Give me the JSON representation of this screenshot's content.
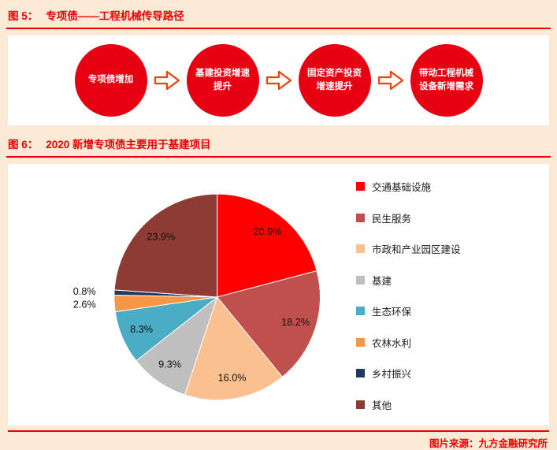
{
  "page": {
    "background_color": "#fcead7",
    "accent_red": "#e60000"
  },
  "figure5": {
    "label": "图 5：",
    "title": "专项债——工程机械传导路径",
    "circle_color": "#e60012",
    "arrow_color": "#e8420d",
    "steps": [
      "专项债增加",
      "基建投资增速提升",
      "固定资产投资增速提升",
      "带动工程机械设备新增需求"
    ]
  },
  "figure6": {
    "label": "图 6：",
    "title": "2020 新增专项债主要用于基建项目"
  },
  "chart_data": {
    "type": "pie",
    "title": "2020 新增专项债主要用于基建项目",
    "categories": [
      "交通基础设施",
      "民生服务",
      "市政和产业园区建设",
      "基建",
      "生态环保",
      "农林水利",
      "乡村振兴",
      "其他"
    ],
    "values": [
      20.9,
      18.2,
      16.0,
      9.3,
      8.3,
      2.6,
      0.8,
      23.9
    ],
    "unit": "%",
    "colors": [
      "#fe0000",
      "#c0504d",
      "#fac090",
      "#bfbfbf",
      "#4bacc6",
      "#f79646",
      "#1f3864",
      "#8e3b34"
    ],
    "start_angle_deg": -90,
    "direction": "clockwise",
    "legend_position": "right",
    "labels_shown": [
      "20.9%",
      "18.2%",
      "16.0%",
      "9.3%",
      "8.3%",
      "2.6%",
      "0.8%",
      "23.9%"
    ]
  },
  "footer": {
    "source": "图片来源：九方金融研究所"
  }
}
